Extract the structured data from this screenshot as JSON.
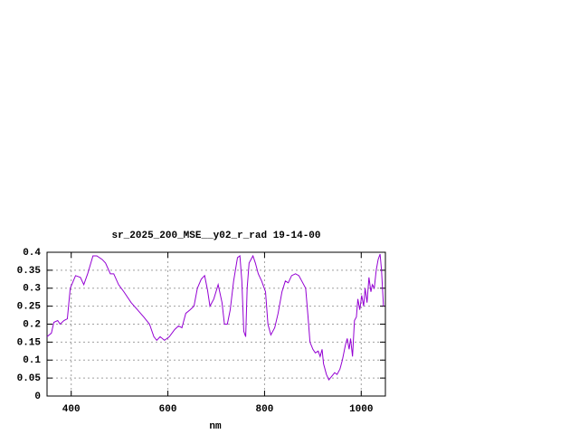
{
  "chart_data": {
    "type": "line",
    "title": "sr_2025_200_MSE__y02_r_rad 19-14-00",
    "x_label": "nm",
    "xlim": [
      350,
      1050
    ],
    "ylim": [
      0,
      0.4
    ],
    "xticks": [
      400,
      600,
      800,
      1000
    ],
    "yticks": [
      0,
      0.05,
      0.1,
      0.15,
      0.2,
      0.25,
      0.3,
      0.35,
      0.4
    ],
    "grid": true,
    "series": [
      {
        "color": "#9400d3",
        "x": [
          350,
          359,
          364,
          372,
          377,
          385,
          392,
          398,
          409,
          419,
          426,
          434,
          445,
          453,
          464,
          471,
          481,
          488,
          498,
          509,
          524,
          537,
          550,
          562,
          571,
          577,
          584,
          593,
          603,
          614,
          622,
          629,
          637,
          646,
          654,
          661,
          669,
          676,
          682,
          687,
          695,
          704,
          712,
          717,
          723,
          729,
          736,
          744,
          749,
          753,
          757,
          761,
          764,
          768,
          776,
          781,
          787,
          794,
          802,
          807,
          813,
          821,
          828,
          836,
          843,
          849,
          856,
          864,
          871,
          877,
          885,
          890,
          894,
          900,
          905,
          911,
          915,
          919,
          922,
          928,
          933,
          939,
          945,
          950,
          956,
          961,
          967,
          971,
          975,
          978,
          982,
          986,
          990,
          993,
          997,
          1001,
          1005,
          1008,
          1012,
          1016,
          1020,
          1023,
          1027,
          1031,
          1035,
          1039,
          1042,
          1046
        ],
        "values": [
          0.165,
          0.175,
          0.205,
          0.21,
          0.2,
          0.21,
          0.215,
          0.3,
          0.335,
          0.33,
          0.31,
          0.34,
          0.39,
          0.39,
          0.38,
          0.37,
          0.34,
          0.34,
          0.31,
          0.29,
          0.26,
          0.24,
          0.22,
          0.2,
          0.165,
          0.155,
          0.165,
          0.155,
          0.165,
          0.185,
          0.195,
          0.19,
          0.23,
          0.24,
          0.25,
          0.3,
          0.325,
          0.335,
          0.295,
          0.25,
          0.27,
          0.31,
          0.26,
          0.2,
          0.2,
          0.24,
          0.32,
          0.385,
          0.39,
          0.32,
          0.18,
          0.165,
          0.3,
          0.37,
          0.39,
          0.37,
          0.34,
          0.32,
          0.29,
          0.2,
          0.17,
          0.19,
          0.23,
          0.29,
          0.32,
          0.315,
          0.335,
          0.34,
          0.335,
          0.32,
          0.3,
          0.22,
          0.15,
          0.13,
          0.12,
          0.125,
          0.11,
          0.13,
          0.09,
          0.06,
          0.045,
          0.055,
          0.065,
          0.06,
          0.075,
          0.1,
          0.14,
          0.16,
          0.13,
          0.16,
          0.11,
          0.21,
          0.22,
          0.27,
          0.24,
          0.28,
          0.25,
          0.3,
          0.26,
          0.33,
          0.29,
          0.31,
          0.3,
          0.35,
          0.38,
          0.395,
          0.35,
          0.25
        ]
      }
    ]
  }
}
